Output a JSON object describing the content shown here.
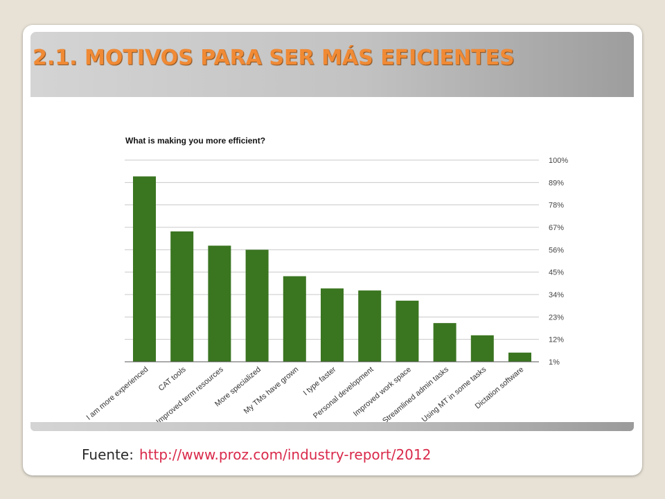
{
  "slide": {
    "title": "2.1. MOTIVOS PARA SER MÁS EFICIENTES",
    "source_label": "Fuente:",
    "source_url": "http://www.proz.com/industry-report/2012"
  },
  "colors": {
    "title": "#f08a35",
    "bar": "#3a7520",
    "link": "#d9294a"
  },
  "chart_data": {
    "type": "bar",
    "title": "What is making you more efficient?",
    "xlabel": "",
    "ylabel": "",
    "categories": [
      "I am more experienced",
      "CAT tools",
      "Improved term resources",
      "More specialized",
      "My TMs have grown",
      "I type faster",
      "Personal development",
      "Improved work space",
      "Streamlined admin tasks",
      "Using MT in some tasks",
      "Dictation software"
    ],
    "values": [
      92,
      65,
      58,
      56,
      43,
      37,
      36,
      31,
      20,
      14,
      5.5
    ],
    "yticks": [
      "100%",
      "89%",
      "78%",
      "67%",
      "56%",
      "45%",
      "34%",
      "23%",
      "12%",
      "1%"
    ],
    "ylim": [
      1,
      100
    ],
    "grid": true,
    "axis_side": "right"
  }
}
